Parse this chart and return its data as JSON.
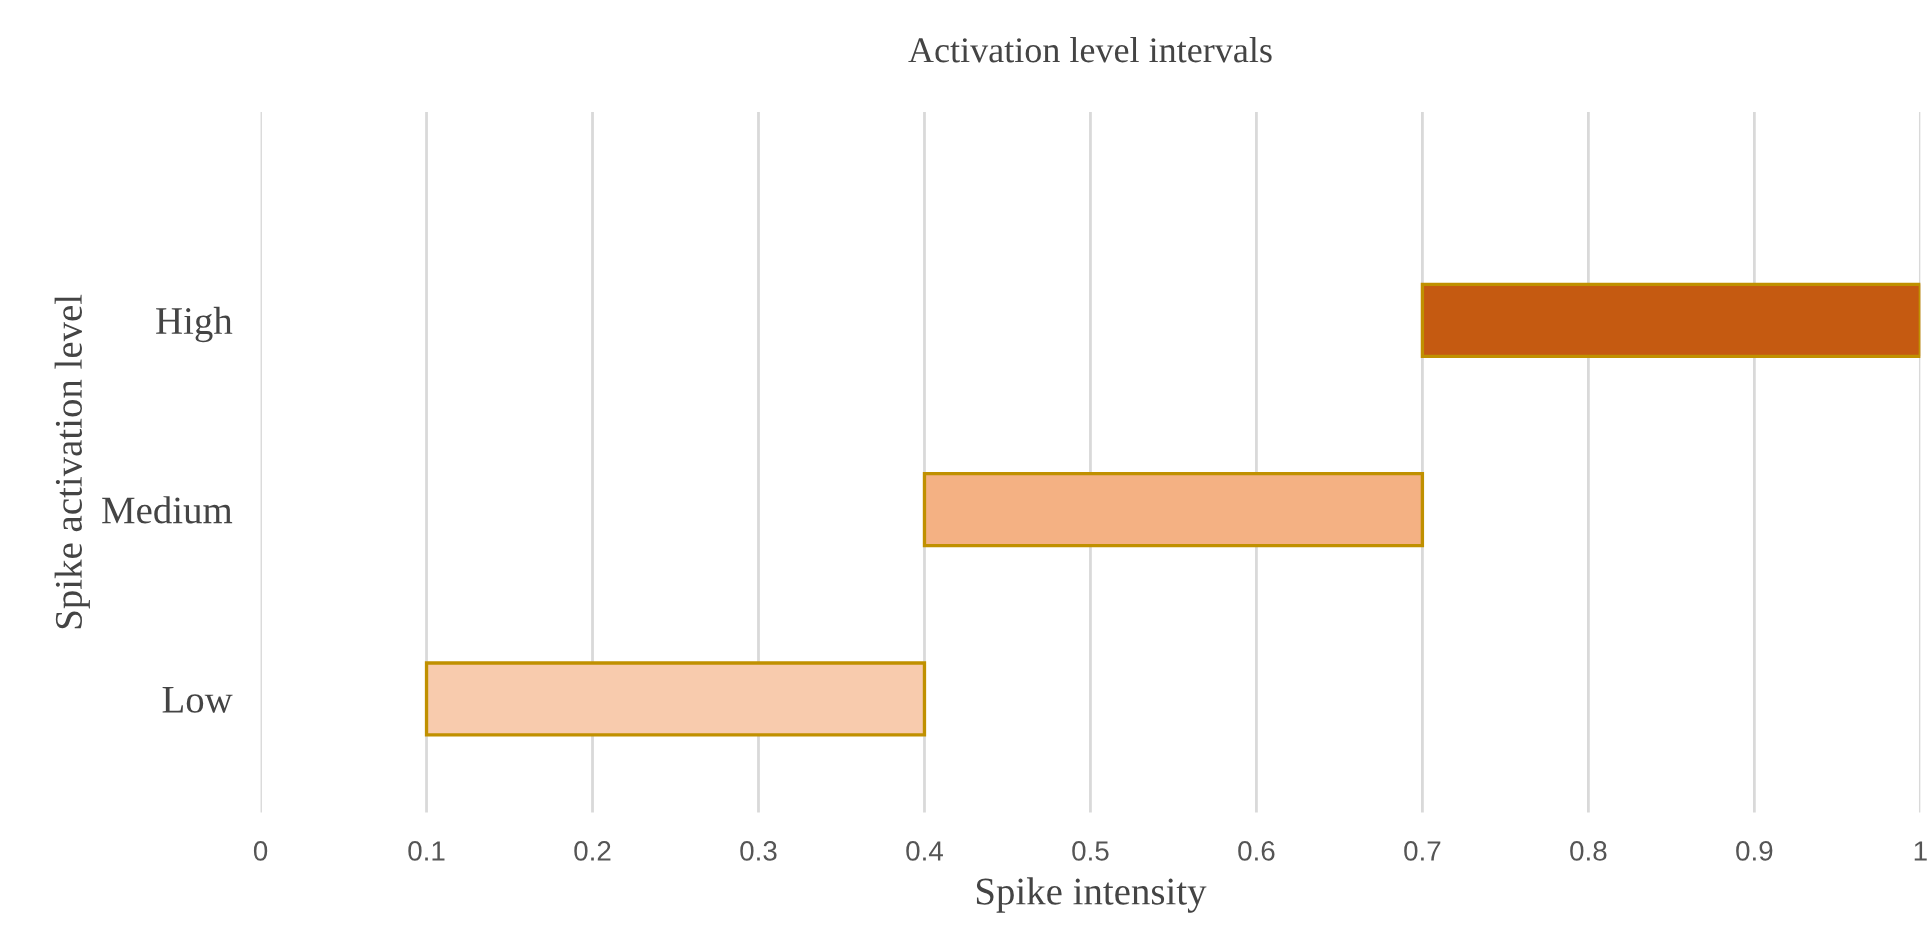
{
  "chart_data": {
    "type": "bar",
    "orientation": "horizontal",
    "title": "Activation level intervals",
    "xlabel": "Spike intensity",
    "ylabel": "Spike activation level",
    "categories": [
      "High",
      "Medium",
      "Low"
    ],
    "base": [
      0.7,
      0.4,
      0.1
    ],
    "values": [
      0.3,
      0.3,
      0.3
    ],
    "colors": [
      "#c55a11",
      "#f4b183",
      "#f8cbad"
    ],
    "xlim": [
      0,
      1
    ],
    "xticks": [
      0,
      0.1,
      0.2,
      0.3,
      0.4,
      0.5,
      0.6,
      0.7,
      0.8,
      0.9,
      1
    ],
    "grid": "x"
  }
}
